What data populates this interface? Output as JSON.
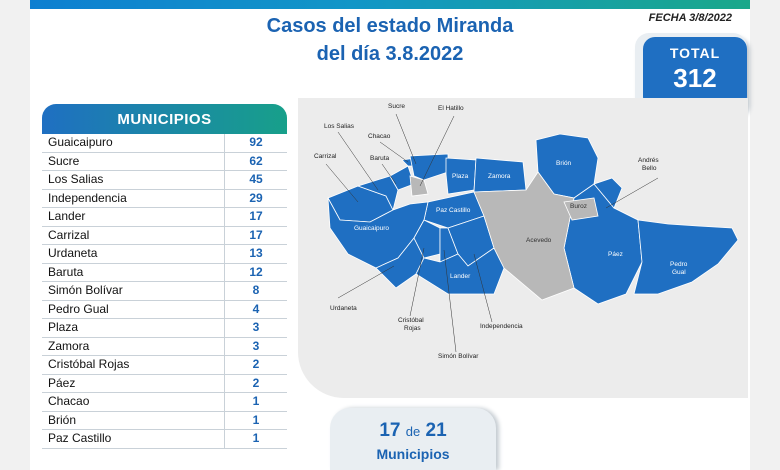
{
  "header": {
    "title_line1": "Casos del estado Miranda",
    "title_line2": "del día 3.8.2022",
    "fecha": "FECHA 3/8/2022"
  },
  "total": {
    "label": "TOTAL",
    "value": "312"
  },
  "table": {
    "header": "MUNICIPIOS",
    "rows": [
      {
        "name": "Guaicaipuro",
        "cases": "92"
      },
      {
        "name": "Sucre",
        "cases": "62"
      },
      {
        "name": "Los Salias",
        "cases": "45"
      },
      {
        "name": "Independencia",
        "cases": "29"
      },
      {
        "name": "Lander",
        "cases": "17"
      },
      {
        "name": "Carrizal",
        "cases": "17"
      },
      {
        "name": "Urdaneta",
        "cases": "13"
      },
      {
        "name": "Baruta",
        "cases": "12"
      },
      {
        "name": "Simón Bolívar",
        "cases": "8"
      },
      {
        "name": "Pedro Gual",
        "cases": "4"
      },
      {
        "name": "Plaza",
        "cases": "3"
      },
      {
        "name": "Zamora",
        "cases": "3"
      },
      {
        "name": "Cristóbal Rojas",
        "cases": "2"
      },
      {
        "name": "Páez",
        "cases": "2"
      },
      {
        "name": "Chacao",
        "cases": "1"
      },
      {
        "name": "Brión",
        "cases": "1"
      },
      {
        "name": "Paz Castillo",
        "cases": "1"
      }
    ]
  },
  "map": {
    "labels": {
      "sucre": "Sucre",
      "el_hatillo": "El Hatillo",
      "los_salias": "Los Salias",
      "chacao": "Chacao",
      "carrizal": "Carrizal",
      "baruta": "Baruta",
      "plaza": "Plaza",
      "zamora": "Zamora",
      "brion": "Brión",
      "andres_bello_1": "Andrés",
      "andres_bello_2": "Bello",
      "buroz": "Buroz",
      "guaicaipuro": "Guaicaipuro",
      "paz_castillo": "Paz Castillo",
      "acevedo": "Acevedo",
      "paez": "Páez",
      "pedro_gual_1": "Pedro",
      "pedro_gual_2": "Gual",
      "lander": "Lander",
      "urdaneta": "Urdaneta",
      "cristobal_rojas_1": "Cristóbal",
      "cristobal_rojas_2": "Rojas",
      "independencia": "Independencia",
      "simon_bolivar": "Simón Bolívar"
    },
    "colors": {
      "with_cases": "#1f6fc2",
      "no_cases": "#b8b8b8",
      "background": "#ececec"
    }
  },
  "summary": {
    "count": "17",
    "connector": "de",
    "total": "21",
    "label": "Municipios"
  }
}
